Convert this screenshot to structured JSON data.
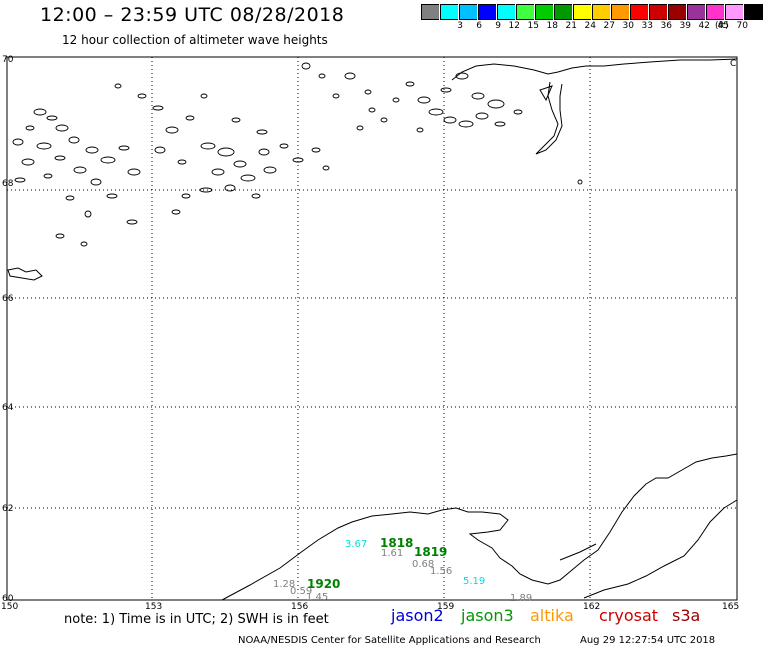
{
  "header": {
    "title": "12:00 – 23:59 UTC 08/28/2018",
    "subtitle": "12 hour collection of altimeter wave heights"
  },
  "scale": {
    "colors": [
      "#808080",
      "#00ffff",
      "#00c0ff",
      "#0000ff",
      "#00ffff",
      "#40ff40",
      "#00cc00",
      "#009900",
      "#ffff00",
      "#ffcc00",
      "#ff9900",
      "#ff0000",
      "#cc0000",
      "#990000",
      "#993399",
      "#ff33cc",
      "#ff99ff",
      "#000000"
    ],
    "labels": [
      "",
      "3",
      "6",
      "9",
      "12",
      "15",
      "18",
      "21",
      "24",
      "27",
      "30",
      "33",
      "36",
      "39",
      "42",
      "45",
      "70"
    ],
    "unit": "(ft)"
  },
  "map": {
    "lon_labels": [
      "150",
      "153",
      "156",
      "159",
      "162",
      "165"
    ],
    "lat_labels": [
      "70",
      "68",
      "66",
      "64",
      "62",
      "60"
    ],
    "corner_label": "C",
    "observations": [
      {
        "text": "3.67",
        "color": "#00e0e0",
        "bold": false
      },
      {
        "text": "1818",
        "color": "#008000",
        "bold": true
      },
      {
        "text": "1.61",
        "color": "#808080",
        "bold": false
      },
      {
        "text": "1819",
        "color": "#008000",
        "bold": true
      },
      {
        "text": "0.68",
        "color": "#808080",
        "bold": false
      },
      {
        "text": "1.56",
        "color": "#808080",
        "bold": false
      },
      {
        "text": "5.19",
        "color": "#00e0e0",
        "bold": false
      },
      {
        "text": "1.28",
        "color": "#808080",
        "bold": false
      },
      {
        "text": "0.59",
        "color": "#808080",
        "bold": false
      },
      {
        "text": "1920",
        "color": "#008000",
        "bold": true
      },
      {
        "text": "1.45",
        "color": "#808080",
        "bold": false
      },
      {
        "text": "1.89",
        "color": "#808080",
        "bold": false
      }
    ]
  },
  "footer": {
    "note": "note: 1) Time is in UTC; 2) SWH is in feet",
    "satellites": [
      {
        "name": "jason2",
        "color": "#0000dd"
      },
      {
        "name": "jason3",
        "color": "#009900"
      },
      {
        "name": "altika",
        "color": "#ff9900"
      },
      {
        "name": "cryosat",
        "color": "#cc0000"
      },
      {
        "name": "s3a",
        "color": "#990000"
      }
    ],
    "credit": "NOAA/NESDIS Center for Satellite Applications and Research",
    "timestamp": "Aug 29 12:27:54 UTC 2018"
  }
}
